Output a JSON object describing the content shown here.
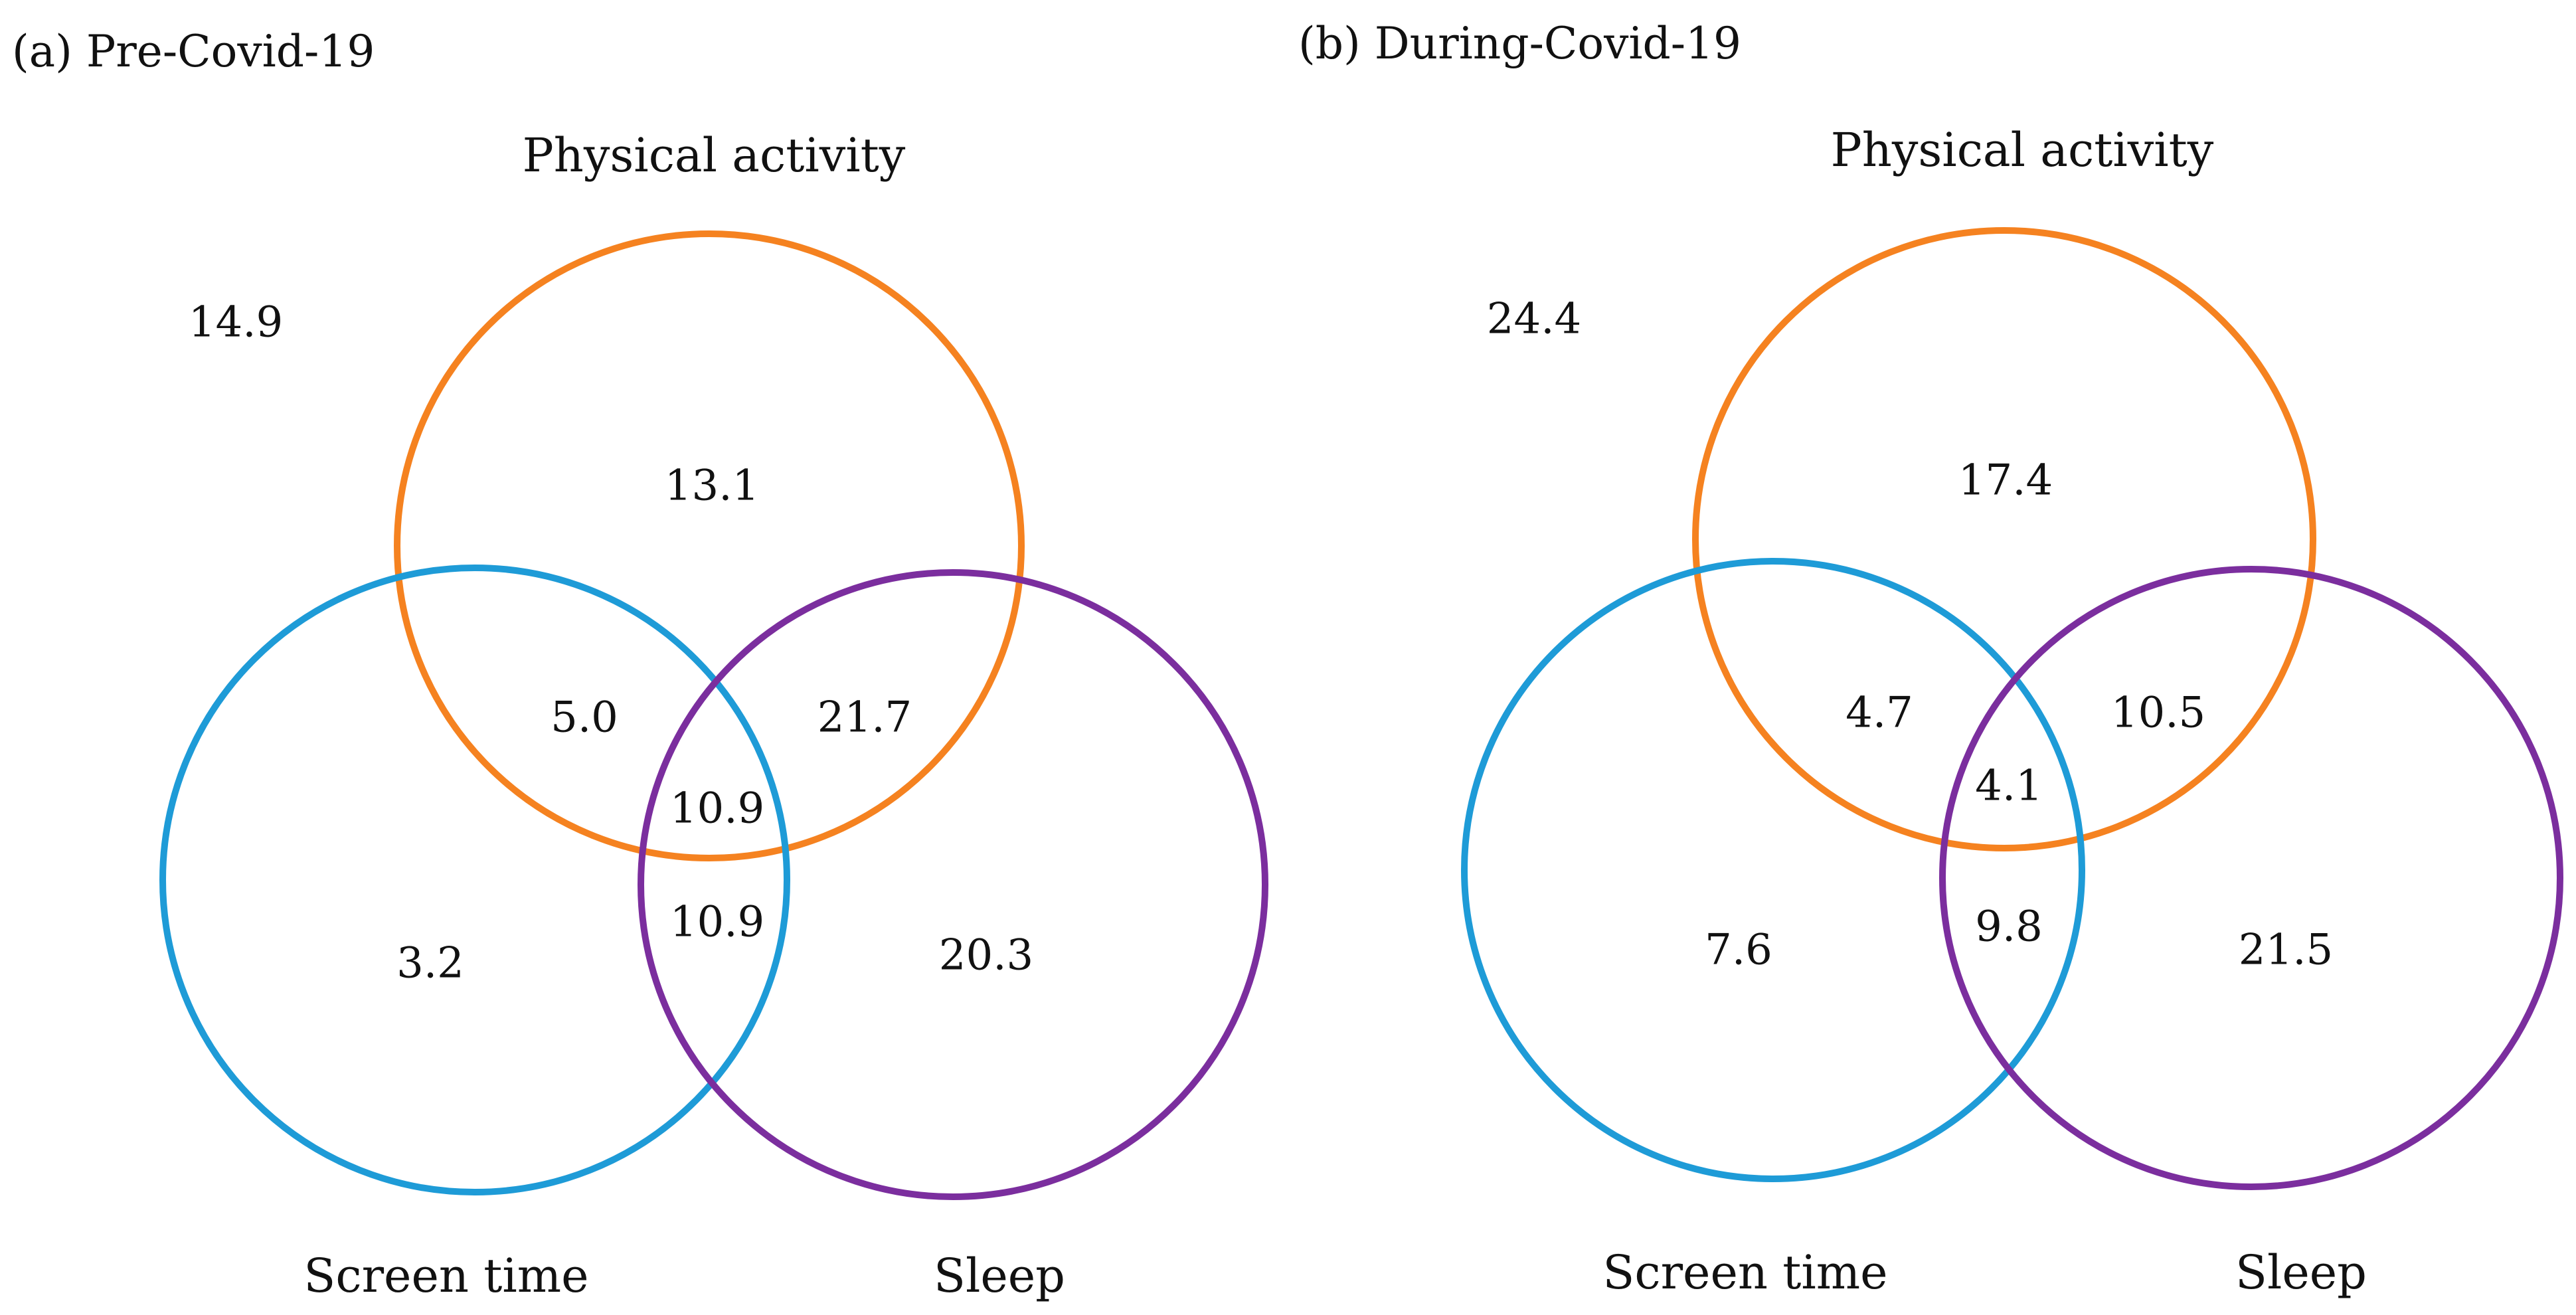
{
  "colors": {
    "physical_activity": "#F58220",
    "screen_time": "#1E9BD7",
    "sleep": "#7B2E9E"
  },
  "panels": [
    {
      "title": "(a) Pre-Covid-19",
      "sets": {
        "physical_activity": "Physical activity",
        "screen_time": "Screen time",
        "sleep": "Sleep"
      },
      "values": {
        "none": "14.9",
        "pa_only": "13.1",
        "pa_screen": "5.0",
        "pa_sleep": "21.7",
        "all_three": "10.9",
        "screen_sleep": "10.9",
        "screen_only": "3.2",
        "sleep_only": "20.3"
      }
    },
    {
      "title": "(b) During-Covid-19",
      "sets": {
        "physical_activity": "Physical activity",
        "screen_time": "Screen time",
        "sleep": "Sleep"
      },
      "values": {
        "none": "24.4",
        "pa_only": "17.4",
        "pa_screen": "4.7",
        "pa_sleep": "10.5",
        "all_three": "4.1",
        "screen_sleep": "9.8",
        "screen_only": "7.6",
        "sleep_only": "21.5"
      }
    }
  ]
}
